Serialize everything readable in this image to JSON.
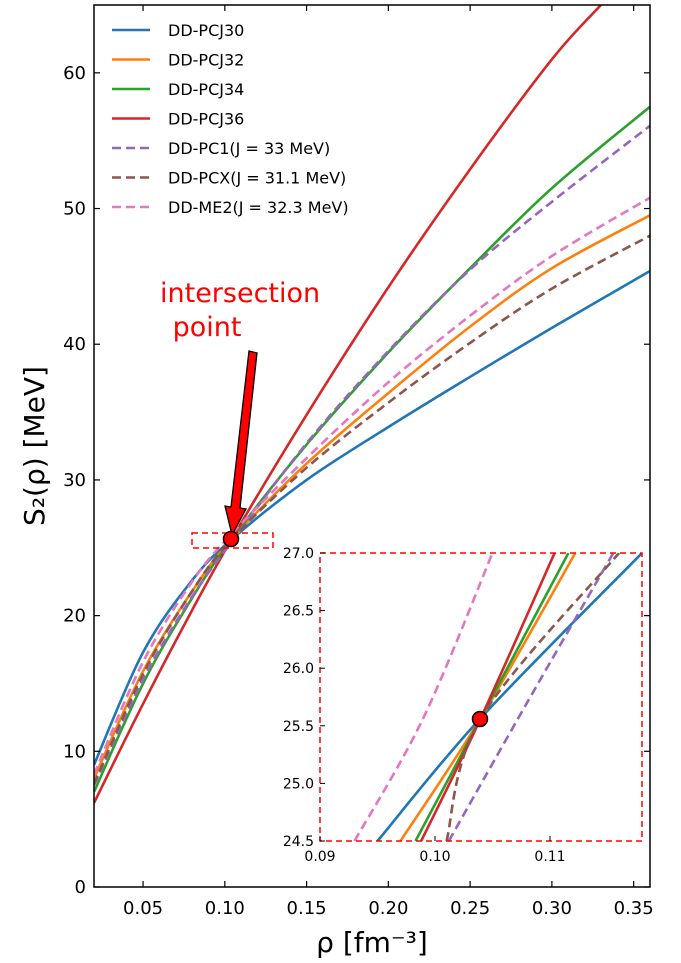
{
  "chart_data": {
    "type": "line",
    "xlabel": "ρ [fm⁻³]",
    "ylabel": "S₂(ρ) [MeV]",
    "xlim": [
      0.02,
      0.36
    ],
    "ylim": [
      0,
      65
    ],
    "xticks": [
      "0.05",
      "0.10",
      "0.15",
      "0.20",
      "0.25",
      "0.30",
      "0.35"
    ],
    "yticks": [
      "0",
      "10",
      "20",
      "30",
      "40",
      "50",
      "60"
    ],
    "legend_position": "top-left",
    "series": [
      {
        "name": "DD-PCJ30",
        "color": "#1f77b4",
        "style": "solid",
        "x": [
          0.02,
          0.05,
          0.08,
          0.104,
          0.15,
          0.2,
          0.25,
          0.3,
          0.36
        ],
        "y": [
          9.0,
          17.3,
          22.6,
          25.6,
          30.0,
          33.9,
          37.6,
          41.2,
          45.4
        ]
      },
      {
        "name": "DD-PCJ32",
        "color": "#ff7f0e",
        "style": "solid",
        "x": [
          0.02,
          0.05,
          0.08,
          0.104,
          0.15,
          0.2,
          0.25,
          0.3,
          0.36
        ],
        "y": [
          8.0,
          15.9,
          21.8,
          25.6,
          31.2,
          36.4,
          41.3,
          45.6,
          49.5
        ]
      },
      {
        "name": "DD-PCJ34",
        "color": "#2ca02c",
        "style": "solid",
        "x": [
          0.02,
          0.05,
          0.08,
          0.104,
          0.15,
          0.2,
          0.25,
          0.3,
          0.36
        ],
        "y": [
          7.0,
          15.0,
          21.3,
          25.6,
          32.6,
          39.4,
          45.6,
          51.5,
          57.5
        ]
      },
      {
        "name": "DD-PCJ36",
        "color": "#d62728",
        "style": "solid",
        "x": [
          0.02,
          0.05,
          0.08,
          0.104,
          0.15,
          0.2,
          0.25,
          0.3,
          0.33
        ],
        "y": [
          6.2,
          13.5,
          20.4,
          25.6,
          34.8,
          44.2,
          52.9,
          61.0,
          65.0
        ]
      },
      {
        "name": "DD-PC1(J = 33 MeV)",
        "color": "#9467bd",
        "style": "dashed",
        "x": [
          0.02,
          0.05,
          0.08,
          0.104,
          0.15,
          0.2,
          0.25,
          0.3,
          0.36
        ],
        "y": [
          7.5,
          15.3,
          21.4,
          25.4,
          32.7,
          39.5,
          45.5,
          50.5,
          56.1
        ]
      },
      {
        "name": "DD-PCX(J = 31.1 MeV)",
        "color": "#8c564b",
        "style": "dashed",
        "x": [
          0.02,
          0.05,
          0.08,
          0.104,
          0.15,
          0.2,
          0.25,
          0.3,
          0.36
        ],
        "y": [
          7.6,
          15.7,
          21.8,
          25.6,
          30.9,
          35.7,
          40.1,
          44.1,
          48.0
        ]
      },
      {
        "name": "DD-ME2(J = 32.3 MeV)",
        "color": "#e377c2",
        "style": "dashed",
        "x": [
          0.02,
          0.05,
          0.08,
          0.104,
          0.15,
          0.2,
          0.25,
          0.3,
          0.36
        ],
        "y": [
          8.3,
          16.6,
          22.5,
          26.0,
          31.6,
          37.2,
          42.1,
          46.5,
          50.8
        ]
      }
    ],
    "annotations": [
      {
        "text_lines": [
          "intersection",
          " point"
        ],
        "color": "#ff0000"
      }
    ],
    "intersection_point": {
      "x": 0.104,
      "y": 25.57
    },
    "inset": {
      "xlim": [
        0.09,
        0.118
      ],
      "ylim": [
        24.5,
        27.0
      ],
      "xticks": [
        "0.09",
        "0.10",
        "0.11"
      ],
      "yticks": [
        "24.5",
        "25.0",
        "25.5",
        "26.0",
        "26.5",
        "27.0"
      ],
      "series": [
        {
          "name": "DD-PCJ30",
          "color": "#1f77b4",
          "style": "solid",
          "x": [
            0.095,
            0.104,
            0.118
          ],
          "y": [
            24.5,
            25.57,
            27.0
          ]
        },
        {
          "name": "DD-PCJ32",
          "color": "#ff7f0e",
          "style": "solid",
          "x": [
            0.097,
            0.104,
            0.1122
          ],
          "y": [
            24.5,
            25.57,
            27.0
          ]
        },
        {
          "name": "DD-PCJ34",
          "color": "#2ca02c",
          "style": "solid",
          "x": [
            0.0983,
            0.104,
            0.1116
          ],
          "y": [
            24.5,
            25.57,
            27.0
          ]
        },
        {
          "name": "DD-PCJ36",
          "color": "#d62728",
          "style": "solid",
          "x": [
            0.0988,
            0.104,
            0.1104
          ],
          "y": [
            24.5,
            25.57,
            27.0
          ]
        },
        {
          "name": "DD-PC1(J = 33 MeV)",
          "color": "#9467bd",
          "style": "dashed",
          "x": [
            0.1012,
            0.108,
            0.1155
          ],
          "y": [
            24.5,
            25.7,
            27.0
          ]
        },
        {
          "name": "DD-PCX(J = 31.1 MeV)",
          "color": "#8c564b",
          "style": "dashed",
          "x": [
            0.101,
            0.104,
            0.116
          ],
          "y": [
            24.5,
            25.57,
            27.0
          ]
        },
        {
          "name": "DD-ME2(J = 32.3 MeV)",
          "color": "#e377c2",
          "style": "dashed",
          "x": [
            0.093,
            0.099,
            0.105
          ],
          "y": [
            24.5,
            25.57,
            27.0
          ]
        }
      ]
    }
  }
}
